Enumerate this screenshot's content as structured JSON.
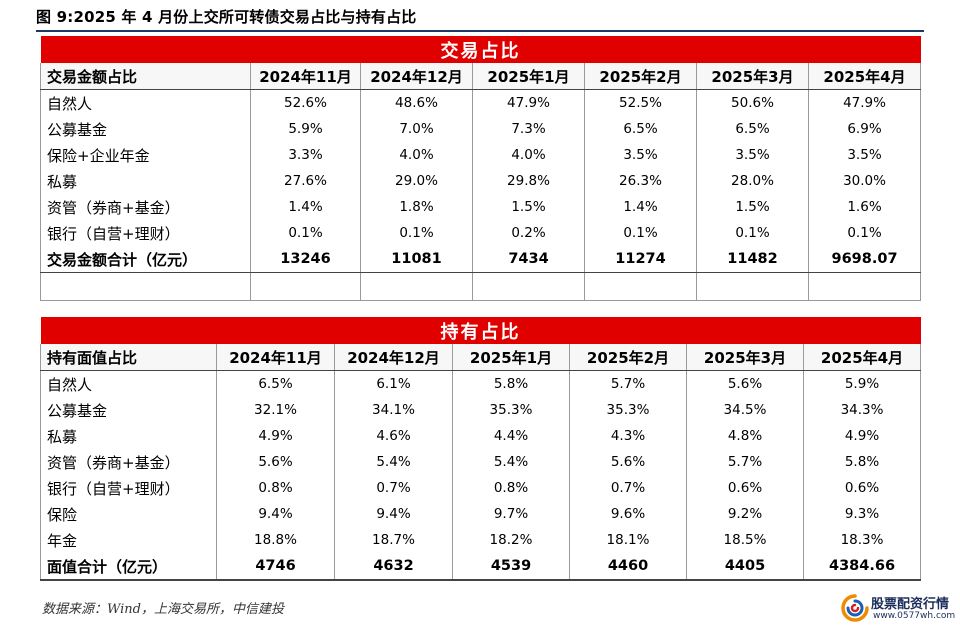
{
  "figure_title": "图 9:2025 年 4 月份上交所可转债交易占比与持有占比",
  "trade_table": {
    "title": "交易占比",
    "headers": [
      "交易金额占比",
      "2024年11月",
      "2024年12月",
      "2025年1月",
      "2025年2月",
      "2025年3月",
      "2025年4月"
    ],
    "rows": [
      [
        "自然人",
        "52.6%",
        "48.6%",
        "47.9%",
        "52.5%",
        "50.6%",
        "47.9%"
      ],
      [
        "公募基金",
        "5.9%",
        "7.0%",
        "7.3%",
        "6.5%",
        "6.5%",
        "6.9%"
      ],
      [
        "保险+企业年金",
        "3.3%",
        "4.0%",
        "4.0%",
        "3.5%",
        "3.5%",
        "3.5%"
      ],
      [
        "私募",
        "27.6%",
        "29.0%",
        "29.8%",
        "26.3%",
        "28.0%",
        "30.0%"
      ],
      [
        "资管（券商+基金）",
        "1.4%",
        "1.8%",
        "1.5%",
        "1.4%",
        "1.5%",
        "1.6%"
      ],
      [
        "银行（自营+理财）",
        "0.1%",
        "0.1%",
        "0.2%",
        "0.1%",
        "0.1%",
        "0.1%"
      ]
    ],
    "total": [
      "交易金额合计（亿元）",
      "13246",
      "11081",
      "7434",
      "11274",
      "11482",
      "9698.07"
    ]
  },
  "hold_table": {
    "title": "持有占比",
    "headers": [
      "持有面值占比",
      "2024年11月",
      "2024年12月",
      "2025年1月",
      "2025年2月",
      "2025年3月",
      "2025年4月"
    ],
    "rows": [
      [
        "自然人",
        "6.5%",
        "6.1%",
        "5.8%",
        "5.7%",
        "5.6%",
        "5.9%"
      ],
      [
        "公募基金",
        "32.1%",
        "34.1%",
        "35.3%",
        "35.3%",
        "34.5%",
        "34.3%"
      ],
      [
        "私募",
        "4.9%",
        "4.6%",
        "4.4%",
        "4.3%",
        "4.8%",
        "4.9%"
      ],
      [
        "资管（券商+基金）",
        "5.6%",
        "5.4%",
        "5.4%",
        "5.6%",
        "5.7%",
        "5.8%"
      ],
      [
        "银行（自营+理财）",
        "0.8%",
        "0.7%",
        "0.8%",
        "0.7%",
        "0.6%",
        "0.6%"
      ],
      [
        "保险",
        "9.4%",
        "9.4%",
        "9.7%",
        "9.6%",
        "9.2%",
        "9.3%"
      ],
      [
        "年金",
        "18.8%",
        "18.7%",
        "18.2%",
        "18.1%",
        "18.5%",
        "18.3%"
      ]
    ],
    "total": [
      "面值合计（亿元）",
      "4746",
      "4632",
      "4539",
      "4460",
      "4405",
      "4384.66"
    ]
  },
  "source_note": "数据来源：Wind，上海交易所，中信建投",
  "watermark": {
    "name": "股票配资行情",
    "url": "www.0577wh.com"
  },
  "colors": {
    "title_bar": "#e00000",
    "rule": "#1f3864",
    "logo_text": "#1b2d5a"
  }
}
